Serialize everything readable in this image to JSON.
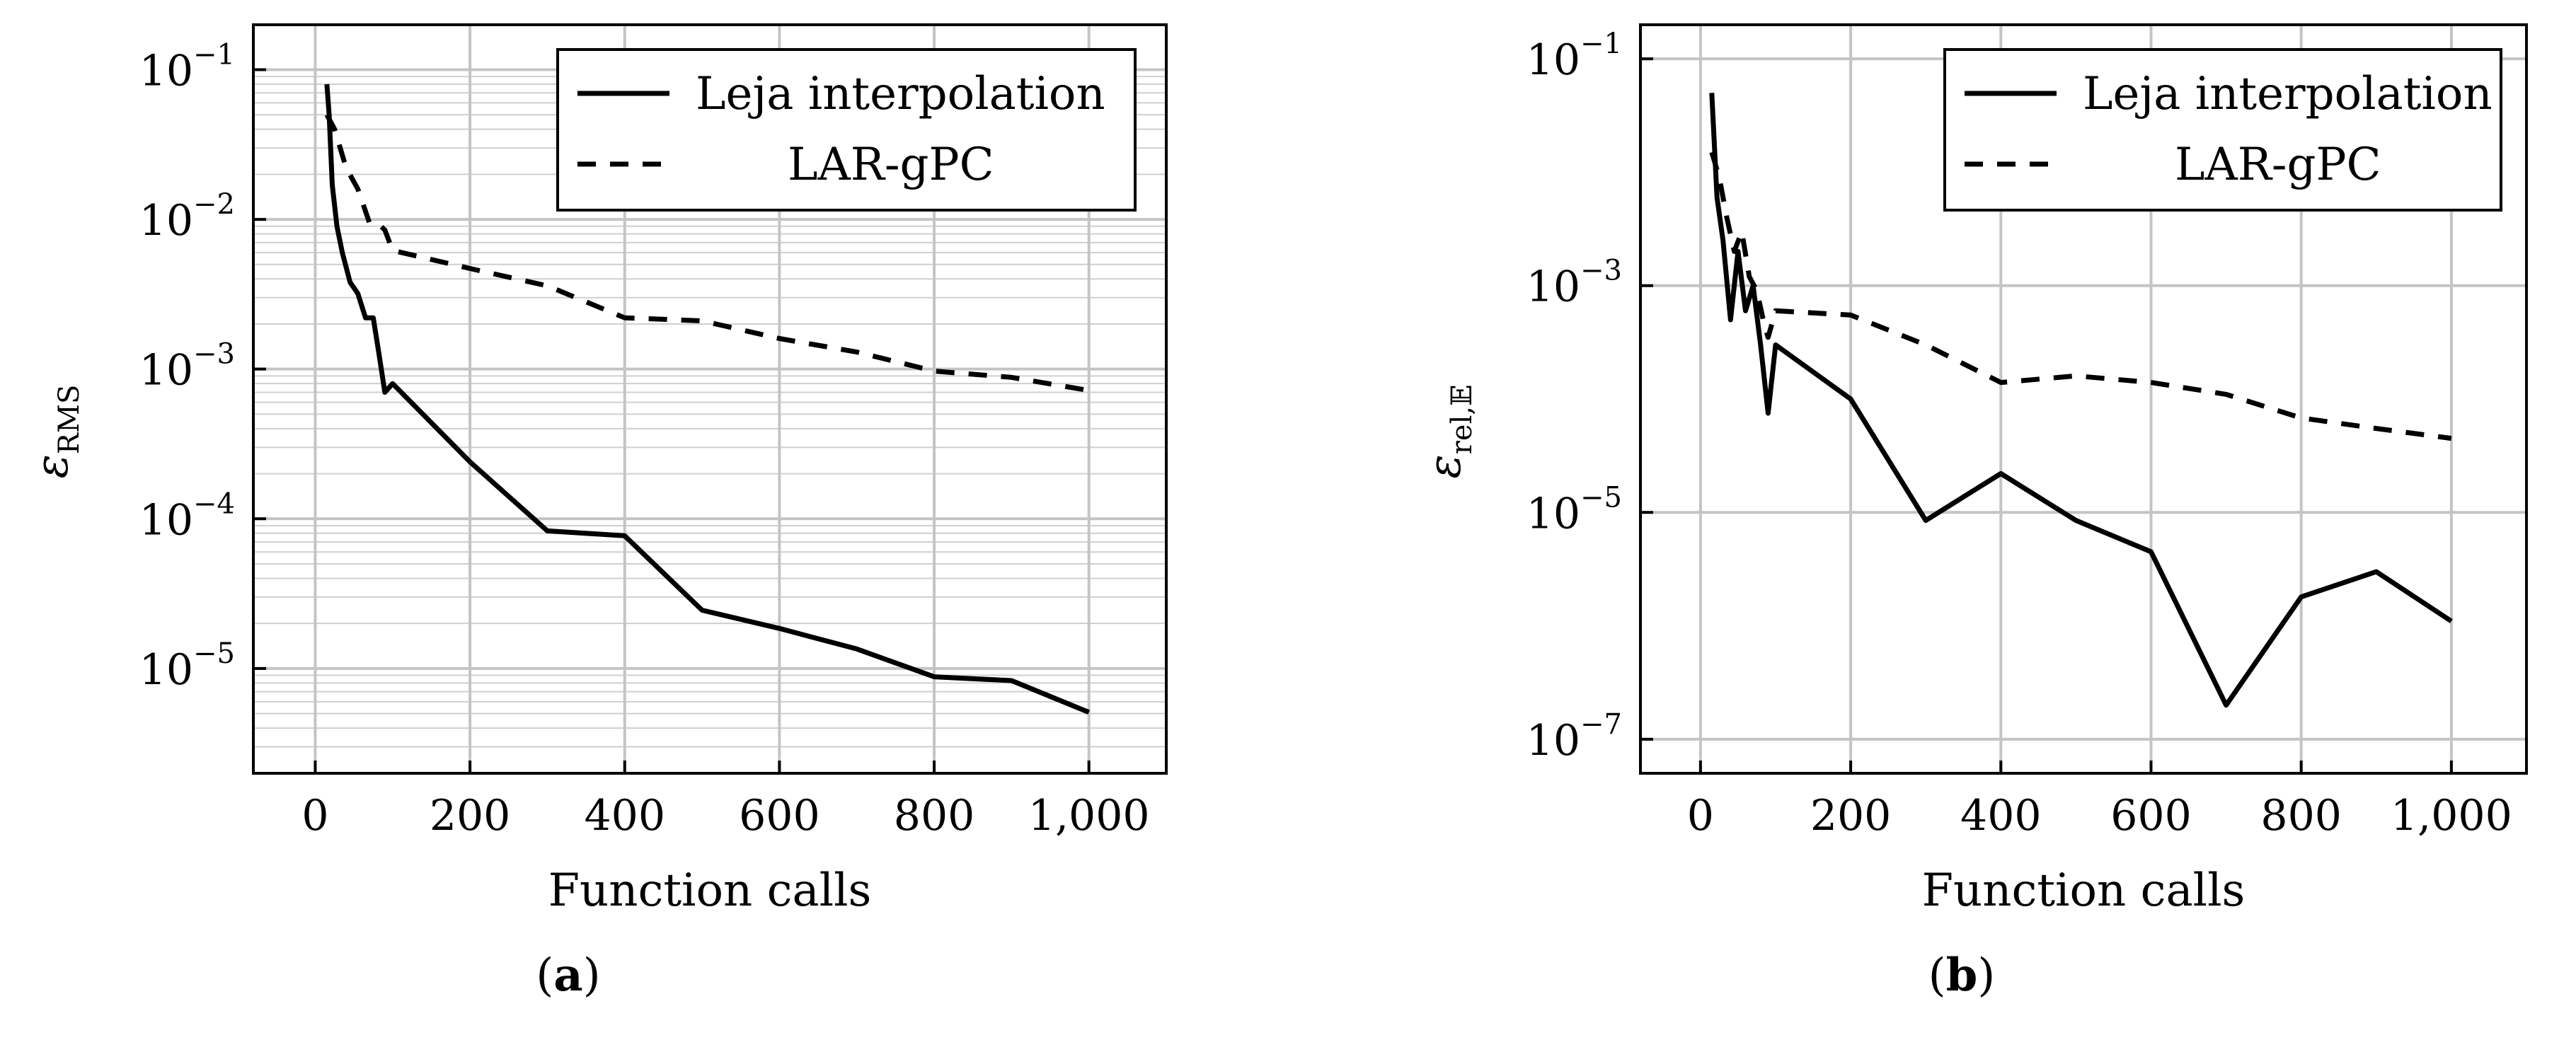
{
  "chart_data": [
    {
      "type": "line",
      "panel_label": "a",
      "xlabel": "Function calls",
      "ylabel_base": "ε",
      "ylabel_sub": "RMS",
      "xlim": [
        -80,
        1100
      ],
      "ylim_log10": [
        -5.7,
        -0.7
      ],
      "y_scale": "log",
      "x_ticks": [
        0,
        200,
        400,
        600,
        800,
        1000
      ],
      "x_tick_labels": [
        "0",
        "200",
        "400",
        "600",
        "800",
        "1,000"
      ],
      "y_ticks_exp": [
        -5,
        -4,
        -3,
        -2,
        -1
      ],
      "y_tick_base": "10",
      "y_tick_exps": [
        "−5",
        "−4",
        "−3",
        "−2",
        "−1"
      ],
      "minor_grid": true,
      "legend_position": "top-right",
      "series": [
        {
          "name": "Leja interpolation",
          "style": "solid",
          "x": [
            15,
            18,
            22,
            28,
            35,
            45,
            55,
            65,
            75,
            82,
            90,
            100,
            200,
            300,
            400,
            500,
            600,
            700,
            800,
            900,
            1000
          ],
          "y": [
            0.08,
            0.05,
            0.017,
            0.009,
            0.006,
            0.0038,
            0.0032,
            0.0022,
            0.0022,
            0.0013,
            0.0007,
            0.0008,
            0.00024,
            8.3e-05,
            7.7e-05,
            2.45e-05,
            1.85e-05,
            1.35e-05,
            8.8e-06,
            8.3e-06,
            5.1e-06
          ]
        },
        {
          "name": "LAR-gPC",
          "style": "dashed",
          "x": [
            15,
            25,
            40,
            55,
            70,
            80,
            90,
            100,
            200,
            300,
            400,
            500,
            600,
            700,
            800,
            900,
            1000
          ],
          "y": [
            0.05,
            0.04,
            0.022,
            0.016,
            0.0095,
            0.0095,
            0.0085,
            0.0062,
            0.0047,
            0.0036,
            0.0022,
            0.0021,
            0.0016,
            0.0013,
            0.00097,
            0.00088,
            0.00072
          ]
        }
      ]
    },
    {
      "type": "line",
      "panel_label": "b",
      "xlabel": "Function calls",
      "ylabel_base": "ε",
      "ylabel_sub": "rel,𝔼",
      "xlim": [
        -80,
        1100
      ],
      "ylim_log10": [
        -7.3,
        -0.7
      ],
      "y_scale": "log",
      "x_ticks": [
        0,
        200,
        400,
        600,
        800,
        1000
      ],
      "x_tick_labels": [
        "0",
        "200",
        "400",
        "600",
        "800",
        "1,000"
      ],
      "y_ticks_exp": [
        -7,
        -5,
        -3,
        -1
      ],
      "y_tick_base": "10",
      "y_tick_exps": [
        "−7",
        "−5",
        "−3",
        "−1"
      ],
      "minor_grid": false,
      "legend_position": "top-right",
      "series": [
        {
          "name": "Leja interpolation",
          "style": "solid",
          "x": [
            15,
            22,
            30,
            40,
            50,
            60,
            70,
            80,
            90,
            100,
            200,
            300,
            400,
            500,
            600,
            700,
            800,
            900,
            1000
          ],
          "y": [
            0.05,
            0.006,
            0.0025,
            0.0005,
            0.002,
            0.0006,
            0.001,
            0.0003,
            7.5e-05,
            0.0003,
            0.0001,
            8.5e-06,
            2.2e-05,
            8.5e-06,
            4.5e-06,
            2e-07,
            1.8e-06,
            3e-06,
            1.1e-06
          ]
        },
        {
          "name": "LAR-gPC",
          "style": "dashed",
          "x": [
            15,
            25,
            35,
            45,
            55,
            65,
            75,
            85,
            90,
            100,
            200,
            300,
            400,
            500,
            600,
            700,
            800,
            900,
            1000
          ],
          "y": [
            0.015,
            0.009,
            0.004,
            0.002,
            0.003,
            0.0012,
            0.0009,
            0.00045,
            0.00035,
            0.0006,
            0.00055,
            0.0003,
            0.00014,
            0.00016,
            0.00014,
            0.00011,
            6.8e-05,
            5.5e-05,
            4.5e-05
          ]
        }
      ]
    }
  ]
}
